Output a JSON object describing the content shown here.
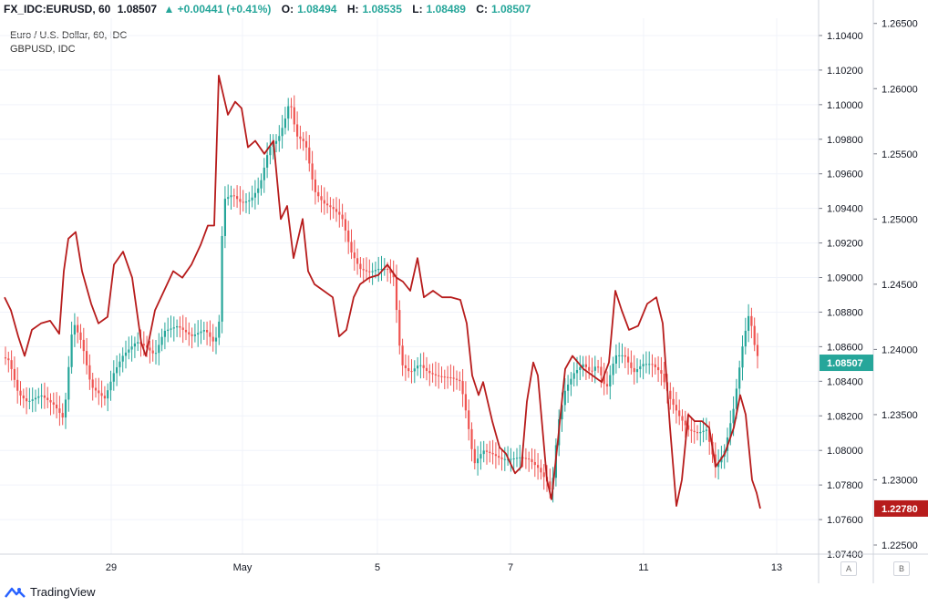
{
  "header": {
    "symbol": "FX_IDC:EURUSD, 60",
    "last": "1.08507",
    "change": "+0.00441 (+0.41%)",
    "o_label": "O:",
    "o_value": "1.08494",
    "h_label": "H:",
    "h_value": "1.08535",
    "l_label": "L:",
    "l_value": "1.08489",
    "c_label": "C:",
    "c_value": "1.08507"
  },
  "legend": {
    "main": "Euro / U.S. Dollar, 60, IDC",
    "compare": "GBPUSD, IDC"
  },
  "footer": {
    "brand": "TradingView"
  },
  "axis_buttons": {
    "a": "A",
    "b": "B"
  },
  "colors": {
    "up": "#26a69a",
    "down": "#ef5350",
    "compare_line": "#b71c1c",
    "grid": "#f0f3fa"
  },
  "chart_data": {
    "type": "candlestick",
    "x_ticks": [
      "29",
      "May",
      "5",
      "7",
      "11",
      "13"
    ],
    "left_axis": {
      "ticks": [
        "1.10400",
        "1.10200",
        "1.10000",
        "1.09800",
        "1.09600",
        "1.09400",
        "1.09200",
        "1.09000",
        "1.08800",
        "1.08600",
        "1.08400",
        "1.08200",
        "1.08000",
        "1.07800",
        "1.07600",
        "1.07400"
      ],
      "min": 1.074,
      "max": 1.105,
      "last_label": "1.08507"
    },
    "right_axis": {
      "ticks": [
        "1.26500",
        "1.26000",
        "1.25500",
        "1.25000",
        "1.24500",
        "1.24000",
        "1.23500",
        "1.23000",
        "1.22500"
      ],
      "min": 1.2243,
      "max": 1.2654,
      "last_label": "1.22780"
    },
    "eurusd_path": [
      [
        0,
        1.0855
      ],
      [
        10,
        1.0852
      ],
      [
        20,
        1.0833
      ],
      [
        30,
        1.0828
      ],
      [
        45,
        1.0832
      ],
      [
        60,
        1.0826
      ],
      [
        70,
        1.0818
      ],
      [
        80,
        1.0875
      ],
      [
        90,
        1.0862
      ],
      [
        100,
        1.0837
      ],
      [
        115,
        1.083
      ],
      [
        125,
        1.0845
      ],
      [
        135,
        1.0855
      ],
      [
        150,
        1.0863
      ],
      [
        160,
        1.086
      ],
      [
        170,
        1.0855
      ],
      [
        180,
        1.0869
      ],
      [
        195,
        1.0872
      ],
      [
        210,
        1.0866
      ],
      [
        225,
        1.087
      ],
      [
        235,
        1.0862
      ],
      [
        240,
        1.087
      ],
      [
        245,
        1.0945
      ],
      [
        255,
        1.0948
      ],
      [
        265,
        1.0943
      ],
      [
        275,
        1.0945
      ],
      [
        285,
        1.0953
      ],
      [
        295,
        1.0975
      ],
      [
        305,
        1.098
      ],
      [
        312,
        1.099
      ],
      [
        318,
        1.1003
      ],
      [
        325,
        1.0982
      ],
      [
        335,
        1.0978
      ],
      [
        345,
        1.095
      ],
      [
        355,
        1.0943
      ],
      [
        365,
        1.094
      ],
      [
        375,
        1.0935
      ],
      [
        385,
        1.0915
      ],
      [
        395,
        1.0905
      ],
      [
        405,
        1.0903
      ],
      [
        415,
        1.0905
      ],
      [
        425,
        1.0905
      ],
      [
        432,
        1.09
      ],
      [
        440,
        1.085
      ],
      [
        450,
        1.0845
      ],
      [
        460,
        1.085
      ],
      [
        470,
        1.0845
      ],
      [
        480,
        1.0843
      ],
      [
        495,
        1.0842
      ],
      [
        505,
        1.084
      ],
      [
        512,
        1.082
      ],
      [
        520,
        1.0792
      ],
      [
        530,
        1.08
      ],
      [
        540,
        1.0798
      ],
      [
        550,
        1.0795
      ],
      [
        560,
        1.0795
      ],
      [
        570,
        1.0796
      ],
      [
        580,
        1.0795
      ],
      [
        590,
        1.079
      ],
      [
        600,
        1.0782
      ],
      [
        605,
        1.0775
      ],
      [
        612,
        1.0815
      ],
      [
        620,
        1.0835
      ],
      [
        630,
        1.0845
      ],
      [
        640,
        1.085
      ],
      [
        648,
        1.0845
      ],
      [
        655,
        1.085
      ],
      [
        665,
        1.0835
      ],
      [
        675,
        1.0855
      ],
      [
        685,
        1.0855
      ],
      [
        695,
        1.0845
      ],
      [
        705,
        1.085
      ],
      [
        715,
        1.085
      ],
      [
        725,
        1.0845
      ],
      [
        735,
        1.083
      ],
      [
        745,
        1.082
      ],
      [
        755,
        1.0812
      ],
      [
        765,
        1.081
      ],
      [
        775,
        1.0812
      ],
      [
        785,
        1.079
      ],
      [
        795,
        1.08
      ],
      [
        805,
        1.0825
      ],
      [
        815,
        1.0862
      ],
      [
        822,
        1.088
      ],
      [
        828,
        1.086
      ],
      [
        833,
        1.0851
      ]
    ],
    "gbpusd_path": [
      [
        5,
        1.244
      ],
      [
        12,
        1.243
      ],
      [
        20,
        1.241
      ],
      [
        27,
        1.2395
      ],
      [
        35,
        1.2415
      ],
      [
        45,
        1.242
      ],
      [
        55,
        1.2422
      ],
      [
        65,
        1.2412
      ],
      [
        70,
        1.246
      ],
      [
        75,
        1.2485
      ],
      [
        83,
        1.249
      ],
      [
        90,
        1.246
      ],
      [
        100,
        1.2435
      ],
      [
        108,
        1.242
      ],
      [
        118,
        1.2425
      ],
      [
        125,
        1.2465
      ],
      [
        135,
        1.2475
      ],
      [
        145,
        1.2455
      ],
      [
        155,
        1.2405
      ],
      [
        160,
        1.2395
      ],
      [
        170,
        1.243
      ],
      [
        180,
        1.2445
      ],
      [
        190,
        1.246
      ],
      [
        200,
        1.2455
      ],
      [
        210,
        1.2465
      ],
      [
        220,
        1.248
      ],
      [
        228,
        1.2495
      ],
      [
        235,
        1.2495
      ],
      [
        240,
        1.261
      ],
      [
        250,
        1.258
      ],
      [
        258,
        1.259
      ],
      [
        265,
        1.2585
      ],
      [
        272,
        1.2555
      ],
      [
        280,
        1.256
      ],
      [
        290,
        1.255
      ],
      [
        300,
        1.256
      ],
      [
        308,
        1.25
      ],
      [
        315,
        1.251
      ],
      [
        322,
        1.247
      ],
      [
        332,
        1.25
      ],
      [
        338,
        1.246
      ],
      [
        345,
        1.245
      ],
      [
        355,
        1.2445
      ],
      [
        365,
        1.244
      ],
      [
        372,
        1.241
      ],
      [
        380,
        1.2415
      ],
      [
        388,
        1.244
      ],
      [
        395,
        1.245
      ],
      [
        405,
        1.2455
      ],
      [
        415,
        1.2457
      ],
      [
        425,
        1.2465
      ],
      [
        435,
        1.2455
      ],
      [
        442,
        1.2452
      ],
      [
        450,
        1.2445
      ],
      [
        458,
        1.247
      ],
      [
        465,
        1.244
      ],
      [
        475,
        1.2445
      ],
      [
        485,
        1.244
      ],
      [
        495,
        1.244
      ],
      [
        505,
        1.2438
      ],
      [
        512,
        1.242
      ],
      [
        518,
        1.238
      ],
      [
        525,
        1.2365
      ],
      [
        530,
        1.2375
      ],
      [
        540,
        1.2345
      ],
      [
        548,
        1.2325
      ],
      [
        555,
        1.232
      ],
      [
        565,
        1.2305
      ],
      [
        572,
        1.231
      ],
      [
        578,
        1.236
      ],
      [
        585,
        1.239
      ],
      [
        590,
        1.238
      ],
      [
        595,
        1.234
      ],
      [
        600,
        1.23
      ],
      [
        605,
        1.2285
      ],
      [
        612,
        1.233
      ],
      [
        620,
        1.2385
      ],
      [
        628,
        1.2395
      ],
      [
        640,
        1.2385
      ],
      [
        650,
        1.238
      ],
      [
        660,
        1.2375
      ],
      [
        668,
        1.239
      ],
      [
        675,
        1.2445
      ],
      [
        682,
        1.243
      ],
      [
        690,
        1.2415
      ],
      [
        700,
        1.2418
      ],
      [
        710,
        1.2435
      ],
      [
        720,
        1.244
      ],
      [
        727,
        1.242
      ],
      [
        735,
        1.234
      ],
      [
        742,
        1.228
      ],
      [
        748,
        1.23
      ],
      [
        755,
        1.235
      ],
      [
        762,
        1.2345
      ],
      [
        770,
        1.2345
      ],
      [
        778,
        1.234
      ],
      [
        785,
        1.231
      ],
      [
        795,
        1.232
      ],
      [
        805,
        1.234
      ],
      [
        812,
        1.2365
      ],
      [
        818,
        1.235
      ],
      [
        825,
        1.23
      ],
      [
        830,
        1.229
      ],
      [
        834,
        1.2278
      ]
    ]
  }
}
